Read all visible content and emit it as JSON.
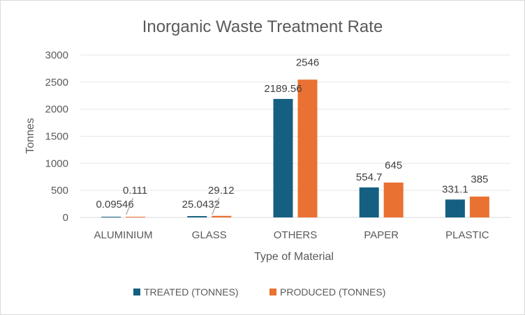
{
  "chart_data": {
    "type": "bar",
    "title": "Inorganic Waste Treatment Rate",
    "xlabel": "Type of Material",
    "ylabel": "Tonnes",
    "categories": [
      "ALUMINIUM",
      "GLASS",
      "OTHERS",
      "PAPER",
      "PLASTIC"
    ],
    "series": [
      {
        "name": "TREATED (TONNES)",
        "color": "#156082",
        "values": [
          0.09546,
          25.0432,
          2189.56,
          554.7,
          331.1
        ],
        "labels": [
          "0.09546",
          "25.0432",
          "2189.56",
          "554.7",
          "331.1"
        ]
      },
      {
        "name": "PRODUCED (TONNES)",
        "color": "#E97132",
        "values": [
          0.111,
          29.12,
          2546,
          645,
          385
        ],
        "labels": [
          "0.111",
          "29.12",
          "2546",
          "645",
          "385"
        ]
      }
    ],
    "ylim": [
      0,
      3000
    ],
    "yticks": [
      0,
      500,
      1000,
      1500,
      2000,
      2500,
      3000
    ],
    "ytick_labels": [
      "0",
      "500",
      "1000",
      "1500",
      "2000",
      "2500",
      "3000"
    ],
    "grid": true,
    "legend": "bottom"
  }
}
